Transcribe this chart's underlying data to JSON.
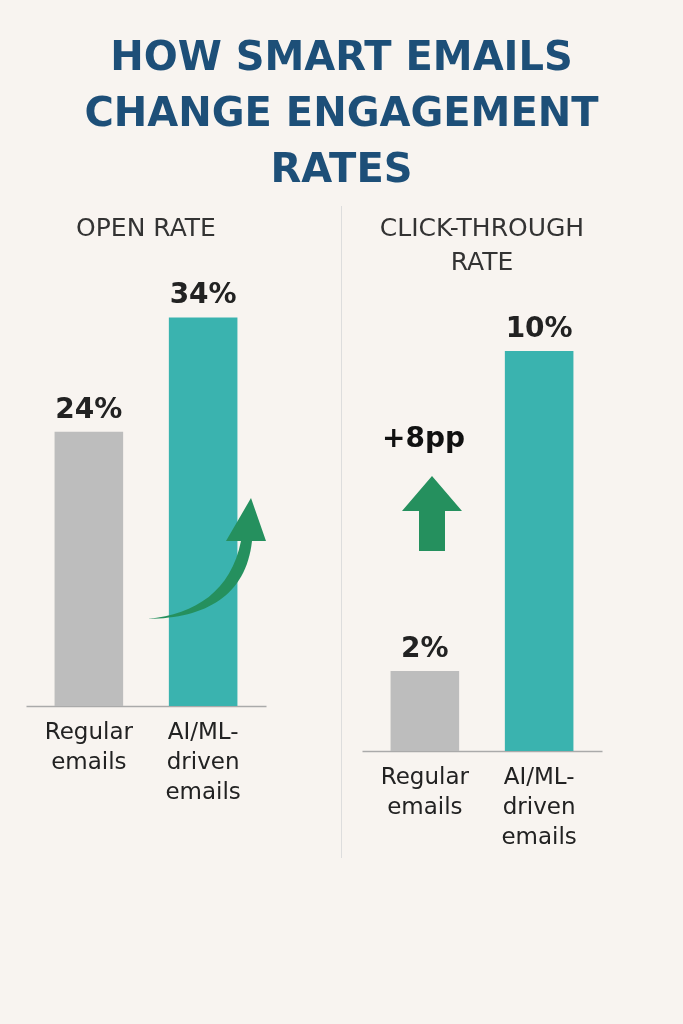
{
  "chart_data": [
    {
      "type": "bar",
      "title": "HOW SMART EMAILS CHANGE ENGAGEMENT RATES",
      "subtitle": "OPEN RATE",
      "categories": [
        "Regular emails",
        "AI/ML-driven emails"
      ],
      "values": [
        24,
        34
      ],
      "colors": [
        "#bdbdbd",
        "#3ab3af"
      ],
      "value_labels": [
        "24%",
        "34%"
      ]
    },
    {
      "type": "bar",
      "title": "CLICK-THROUGH RATE",
      "categories": [
        "Regular emails",
        "AI/ML-driven emails"
      ],
      "values": [
        2,
        10
      ],
      "colors": [
        "#bdbdbd",
        "#3ab3af"
      ],
      "value_labels": [
        "2%",
        "10%"
      ],
      "annotations": [
        "+8pp"
      ]
    }
  ]
}
